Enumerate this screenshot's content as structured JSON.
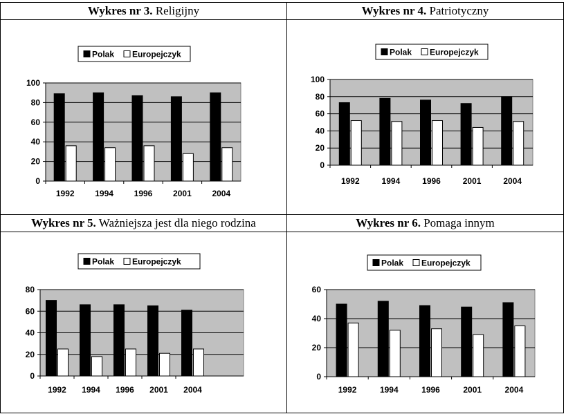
{
  "charts": [
    {
      "heading_bold": "Wykres nr 3.",
      "heading_rest": " Religijny",
      "chart_data": {
        "type": "bar",
        "categories": [
          "1992",
          "1994",
          "1996",
          "2001",
          "2004"
        ],
        "series": [
          {
            "name": "Polak",
            "values": [
              89,
              90,
              87,
              86,
              90
            ]
          },
          {
            "name": "Europejczyk",
            "values": [
              36,
              34,
              36,
              28,
              34
            ]
          }
        ],
        "ylim": [
          0,
          100
        ],
        "yticks": [
          0,
          20,
          40,
          60,
          80,
          100
        ],
        "grid": true,
        "legend": "top",
        "colors": {
          "Polak": "#000000",
          "Europejczyk": "#ffffff",
          "plot_bg": "#c0c0c0"
        }
      }
    },
    {
      "heading_bold": "Wykres nr 4.",
      "heading_rest": " Patriotyczny",
      "chart_data": {
        "type": "bar",
        "categories": [
          "1992",
          "1994",
          "1996",
          "2001",
          "2004"
        ],
        "series": [
          {
            "name": "Polak",
            "values": [
              73,
              78,
              76,
              72,
              80
            ]
          },
          {
            "name": "Europejczyk",
            "values": [
              52,
              51,
              52,
              44,
              51
            ]
          }
        ],
        "ylim": [
          0,
          100
        ],
        "yticks": [
          0,
          20,
          40,
          60,
          80,
          100
        ],
        "grid": true,
        "legend": "top",
        "colors": {
          "Polak": "#000000",
          "Europejczyk": "#ffffff",
          "plot_bg": "#c0c0c0"
        }
      }
    },
    {
      "heading_bold": "Wykres nr 5.",
      "heading_rest": " Ważniejsza jest dla niego rodzina",
      "chart_data": {
        "type": "bar",
        "categories": [
          "1992",
          "1994",
          "1996",
          "2001",
          "2004"
        ],
        "series": [
          {
            "name": "Polak",
            "values": [
              70,
              66,
              66,
              65,
              61
            ]
          },
          {
            "name": "Europejczyk",
            "values": [
              25,
              18,
              25,
              21,
              25
            ]
          }
        ],
        "ylim": [
          0,
          80
        ],
        "yticks": [
          0,
          20,
          40,
          60,
          80
        ],
        "grid": true,
        "legend": "top",
        "colors": {
          "Polak": "#000000",
          "Europejczyk": "#ffffff",
          "plot_bg": "#c0c0c0"
        }
      }
    },
    {
      "heading_bold": "Wykres nr 6.",
      "heading_rest": " Pomaga innym",
      "chart_data": {
        "type": "bar",
        "categories": [
          "1992",
          "1994",
          "1996",
          "2001",
          "2004"
        ],
        "series": [
          {
            "name": "Polak",
            "values": [
              50,
              52,
              49,
              48,
              51
            ]
          },
          {
            "name": "Europejczyk",
            "values": [
              37,
              32,
              33,
              29,
              35
            ]
          }
        ],
        "ylim": [
          0,
          60
        ],
        "yticks": [
          0,
          20,
          40,
          60
        ],
        "grid": true,
        "legend": "top",
        "colors": {
          "Polak": "#000000",
          "Europejczyk": "#ffffff",
          "plot_bg": "#c0c0c0"
        }
      }
    }
  ]
}
